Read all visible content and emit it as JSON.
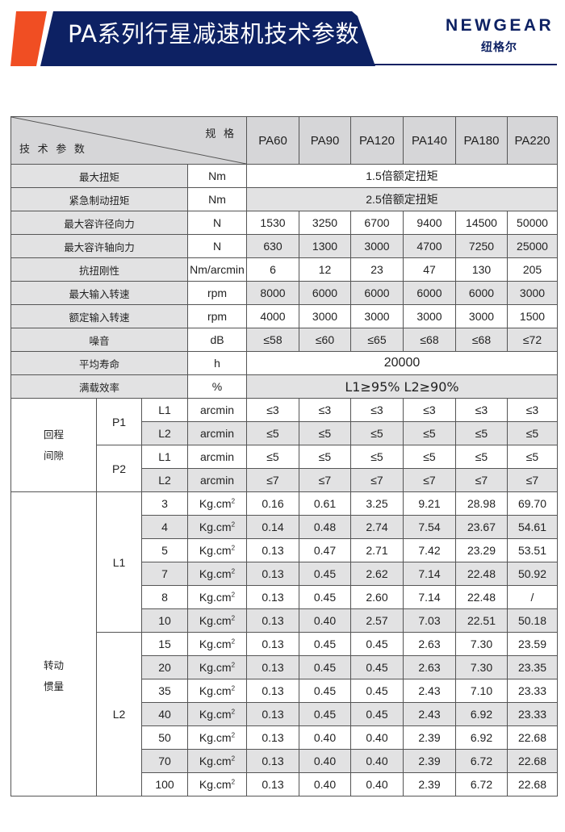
{
  "header": {
    "title": "PA系列行星减速机技术参数",
    "logo_en": "NEWGEAR",
    "logo_cn": "纽格尔",
    "colors": {
      "navy": "#0d2163",
      "orange": "#f04e23"
    }
  },
  "table": {
    "corner_spec": "规 格",
    "corner_param": "技 术 参 数",
    "models": [
      "PA60",
      "PA90",
      "PA120",
      "PA140",
      "PA180",
      "PA220"
    ],
    "general": [
      {
        "name": "最大扭矩",
        "unit": "Nm",
        "merged": "1.5倍额定扭矩"
      },
      {
        "name": "紧急制动扭矩",
        "unit": "Nm",
        "merged": "2.5倍额定扭矩"
      },
      {
        "name": "最大容许径向力",
        "unit": "N",
        "values": [
          "1530",
          "3250",
          "6700",
          "9400",
          "14500",
          "50000"
        ]
      },
      {
        "name": "最大容许轴向力",
        "unit": "N",
        "values": [
          "630",
          "1300",
          "3000",
          "4700",
          "7250",
          "25000"
        ]
      },
      {
        "name": "抗扭刚性",
        "unit": "Nm/arcmin",
        "values": [
          "6",
          "12",
          "23",
          "47",
          "130",
          "205"
        ]
      },
      {
        "name": "最大输入转速",
        "unit": "rpm",
        "values": [
          "8000",
          "6000",
          "6000",
          "6000",
          "6000",
          "3000"
        ]
      },
      {
        "name": "额定输入转速",
        "unit": "rpm",
        "values": [
          "4000",
          "3000",
          "3000",
          "3000",
          "3000",
          "1500"
        ]
      },
      {
        "name": "噪音",
        "unit": "dB",
        "values": [
          "≤58",
          "≤60",
          "≤65",
          "≤68",
          "≤68",
          "≤72"
        ]
      },
      {
        "name": "平均寿命",
        "unit": "h",
        "merged": "20000"
      },
      {
        "name": "满载效率",
        "unit": "%",
        "merged": "L1≥95%   L2≥90%"
      }
    ],
    "backlash": {
      "label": "回程\n间隙",
      "groups": [
        {
          "name": "P1",
          "rows": [
            {
              "stage": "L1",
              "unit": "arcmin",
              "values": [
                "≤3",
                "≤3",
                "≤3",
                "≤3",
                "≤3",
                "≤3"
              ]
            },
            {
              "stage": "L2",
              "unit": "arcmin",
              "values": [
                "≤5",
                "≤5",
                "≤5",
                "≤5",
                "≤5",
                "≤5"
              ]
            }
          ]
        },
        {
          "name": "P2",
          "rows": [
            {
              "stage": "L1",
              "unit": "arcmin",
              "values": [
                "≤5",
                "≤5",
                "≤5",
                "≤5",
                "≤5",
                "≤5"
              ]
            },
            {
              "stage": "L2",
              "unit": "arcmin",
              "values": [
                "≤7",
                "≤7",
                "≤7",
                "≤7",
                "≤7",
                "≤7"
              ]
            }
          ]
        }
      ]
    },
    "inertia": {
      "label": "转动\n惯量",
      "unit": "Kg.cm",
      "unit_sup": "2",
      "groups": [
        {
          "name": "L1",
          "rows": [
            {
              "ratio": "3",
              "values": [
                "0.16",
                "0.61",
                "3.25",
                "9.21",
                "28.98",
                "69.70"
              ]
            },
            {
              "ratio": "4",
              "values": [
                "0.14",
                "0.48",
                "2.74",
                "7.54",
                "23.67",
                "54.61"
              ]
            },
            {
              "ratio": "5",
              "values": [
                "0.13",
                "0.47",
                "2.71",
                "7.42",
                "23.29",
                "53.51"
              ]
            },
            {
              "ratio": "7",
              "values": [
                "0.13",
                "0.45",
                "2.62",
                "7.14",
                "22.48",
                "50.92"
              ]
            },
            {
              "ratio": "8",
              "values": [
                "0.13",
                "0.45",
                "2.60",
                "7.14",
                "22.48",
                "/"
              ]
            },
            {
              "ratio": "10",
              "values": [
                "0.13",
                "0.40",
                "2.57",
                "7.03",
                "22.51",
                "50.18"
              ]
            }
          ]
        },
        {
          "name": "L2",
          "rows": [
            {
              "ratio": "15",
              "values": [
                "0.13",
                "0.45",
                "0.45",
                "2.63",
                "7.30",
                "23.59"
              ]
            },
            {
              "ratio": "20",
              "values": [
                "0.13",
                "0.45",
                "0.45",
                "2.63",
                "7.30",
                "23.35"
              ]
            },
            {
              "ratio": "35",
              "values": [
                "0.13",
                "0.45",
                "0.45",
                "2.43",
                "7.10",
                "23.33"
              ]
            },
            {
              "ratio": "40",
              "values": [
                "0.13",
                "0.45",
                "0.45",
                "2.43",
                "6.92",
                "23.33"
              ]
            },
            {
              "ratio": "50",
              "values": [
                "0.13",
                "0.40",
                "0.40",
                "2.39",
                "6.92",
                "22.68"
              ]
            },
            {
              "ratio": "70",
              "values": [
                "0.13",
                "0.40",
                "0.40",
                "2.39",
                "6.72",
                "22.68"
              ]
            },
            {
              "ratio": "100",
              "values": [
                "0.13",
                "0.40",
                "0.40",
                "2.39",
                "6.72",
                "22.68"
              ]
            }
          ]
        }
      ]
    }
  }
}
